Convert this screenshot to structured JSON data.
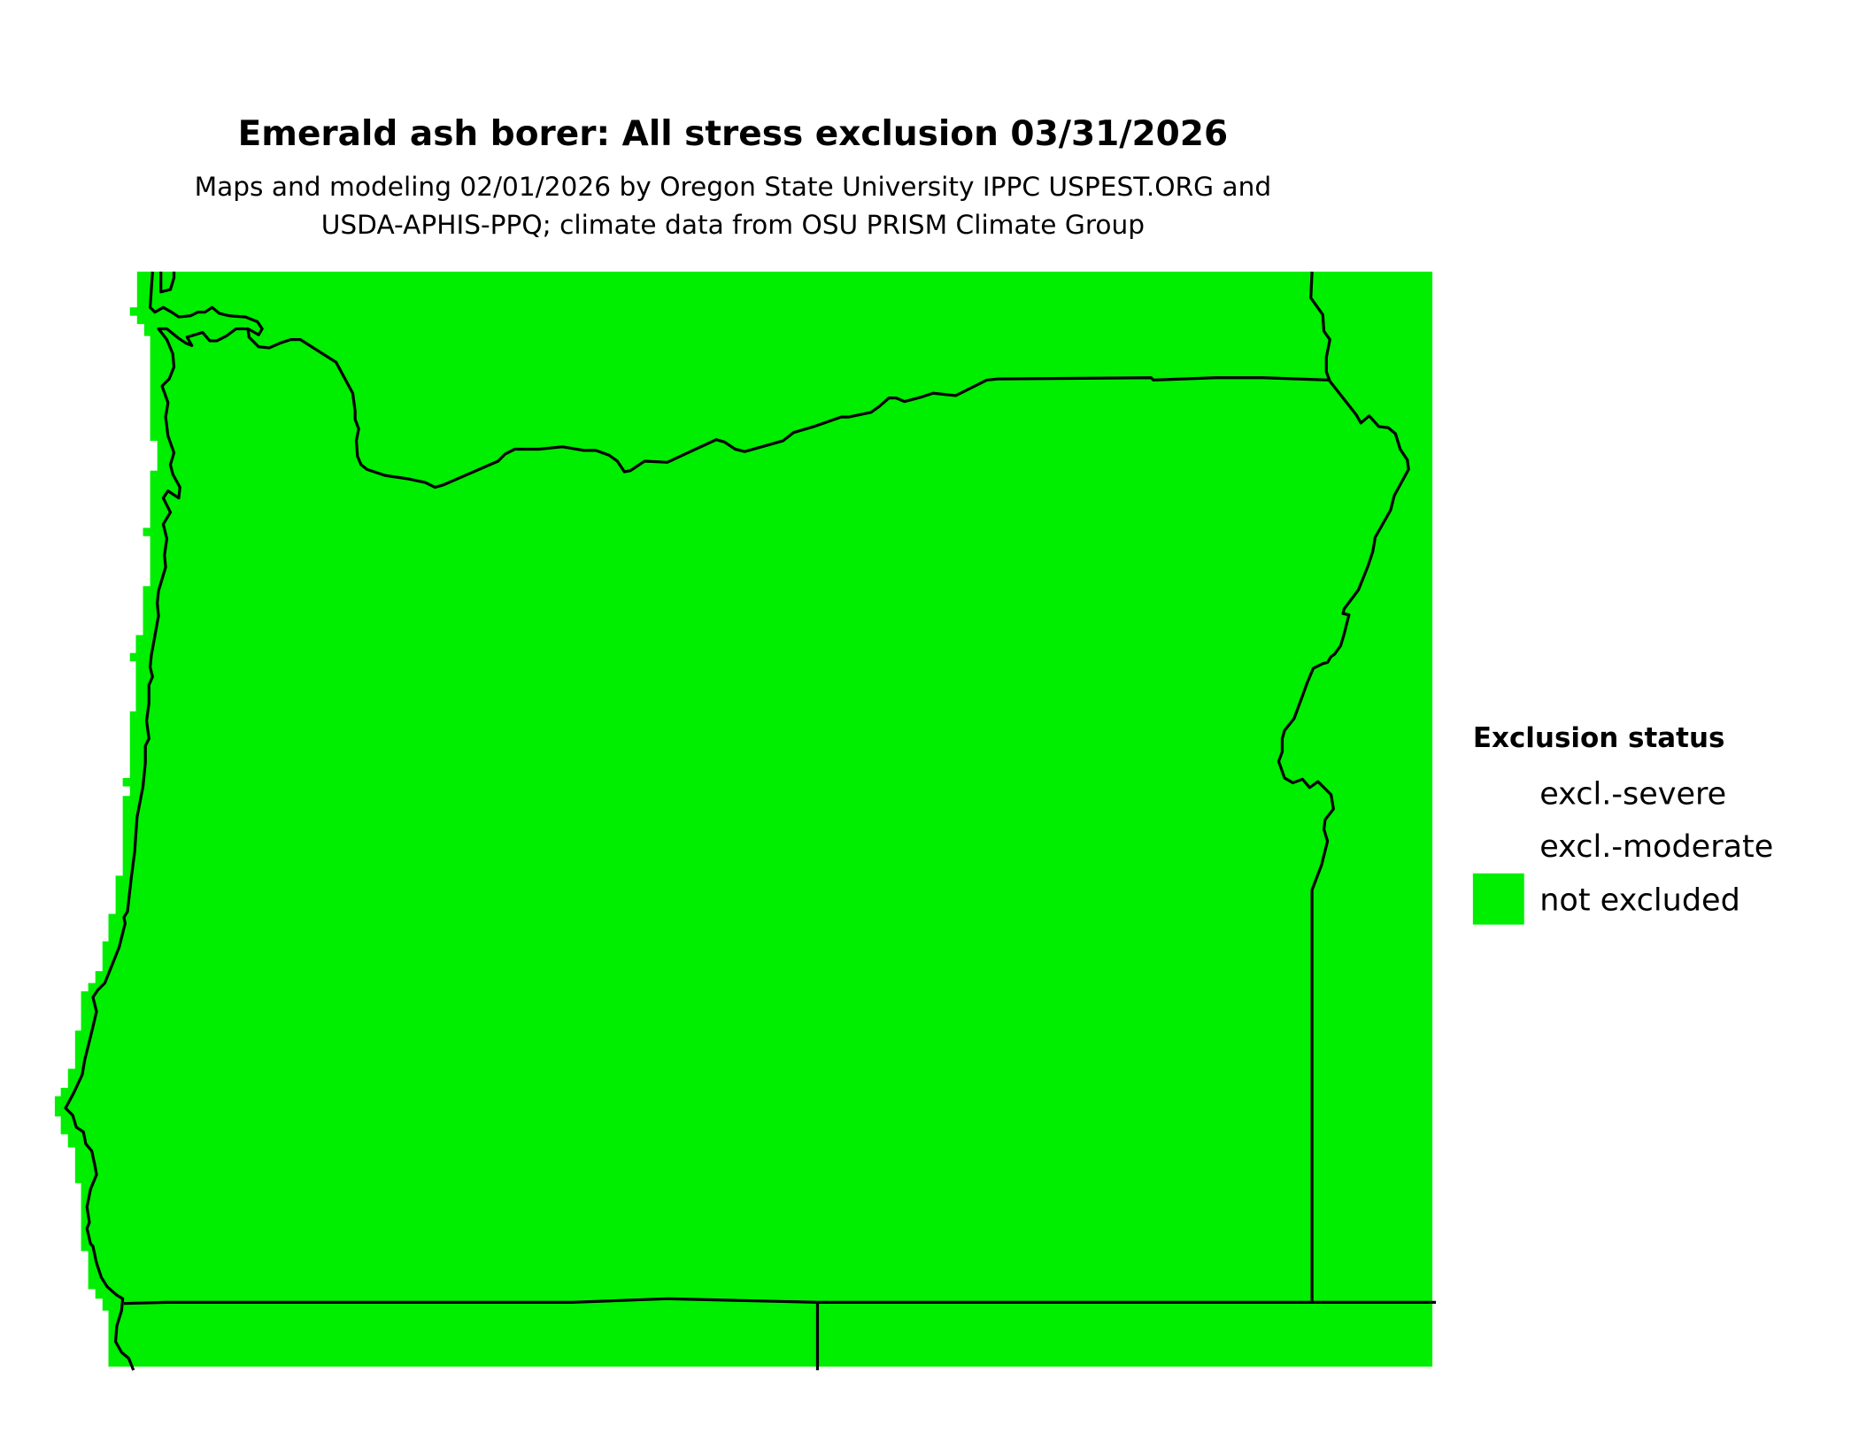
{
  "title": "Emerald ash borer: All stress exclusion 03/31/2026",
  "subtitle_line1": "Maps and modeling 02/01/2026 by Oregon State University IPPC USPEST.ORG and",
  "subtitle_line2": "USDA-APHIS-PPQ; climate data from OSU PRISM Climate Group",
  "legend": {
    "title": "Exclusion status",
    "items": [
      {
        "label": "excl.-severe",
        "color": "#ffffff"
      },
      {
        "label": "excl.-moderate",
        "color": "#ffffff"
      },
      {
        "label": "not excluded",
        "color": "#00ee00"
      }
    ]
  },
  "map": {
    "region": "Oregon",
    "fill_status": "not excluded",
    "fill_color": "#00ee00",
    "boundary_color": "#000000"
  }
}
